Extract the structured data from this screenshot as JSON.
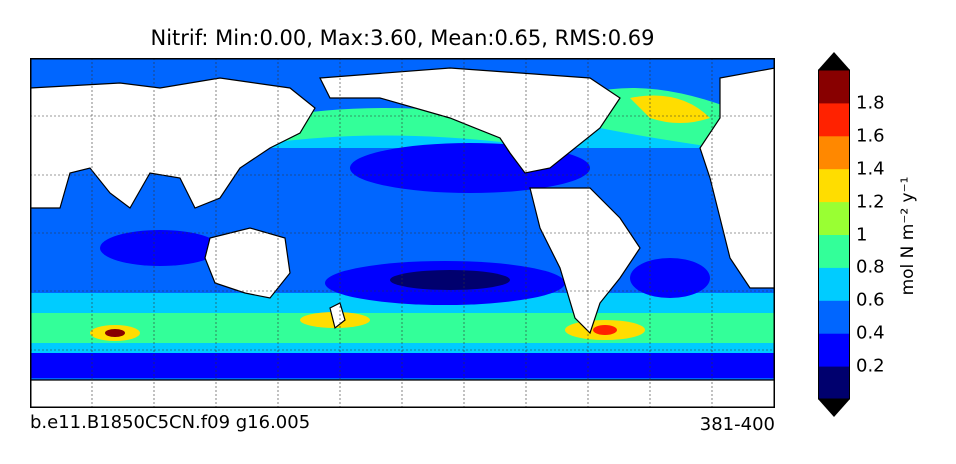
{
  "title": "Nitrif: Min:0.00, Max:3.60, Mean:0.65, RMS:0.69",
  "footer_left": "b.e11.B1850C5CN.f09 g16.005",
  "footer_right": "381-400",
  "colorbar": {
    "label": "mol N m⁻² y⁻¹",
    "ticks": [
      "0.2",
      "0.4",
      "0.6",
      "0.8",
      "1",
      "1.2",
      "1.4",
      "1.6",
      "1.8"
    ],
    "colors": [
      "#00006e",
      "#0000ff",
      "#0066ff",
      "#00ccff",
      "#33ff99",
      "#99ff33",
      "#ffdd00",
      "#ff8800",
      "#ff2200",
      "#880000"
    ]
  },
  "colors": {
    "land": "#ffffff",
    "ocean_low": "#0000ff",
    "ocean_mid": "#0066ff",
    "ocean_cyan": "#00ccff",
    "ocean_green": "#33ff99",
    "ocean_yellow": "#ffdd00",
    "ocean_red": "#ff2200",
    "ocean_dark": "#880000"
  }
}
